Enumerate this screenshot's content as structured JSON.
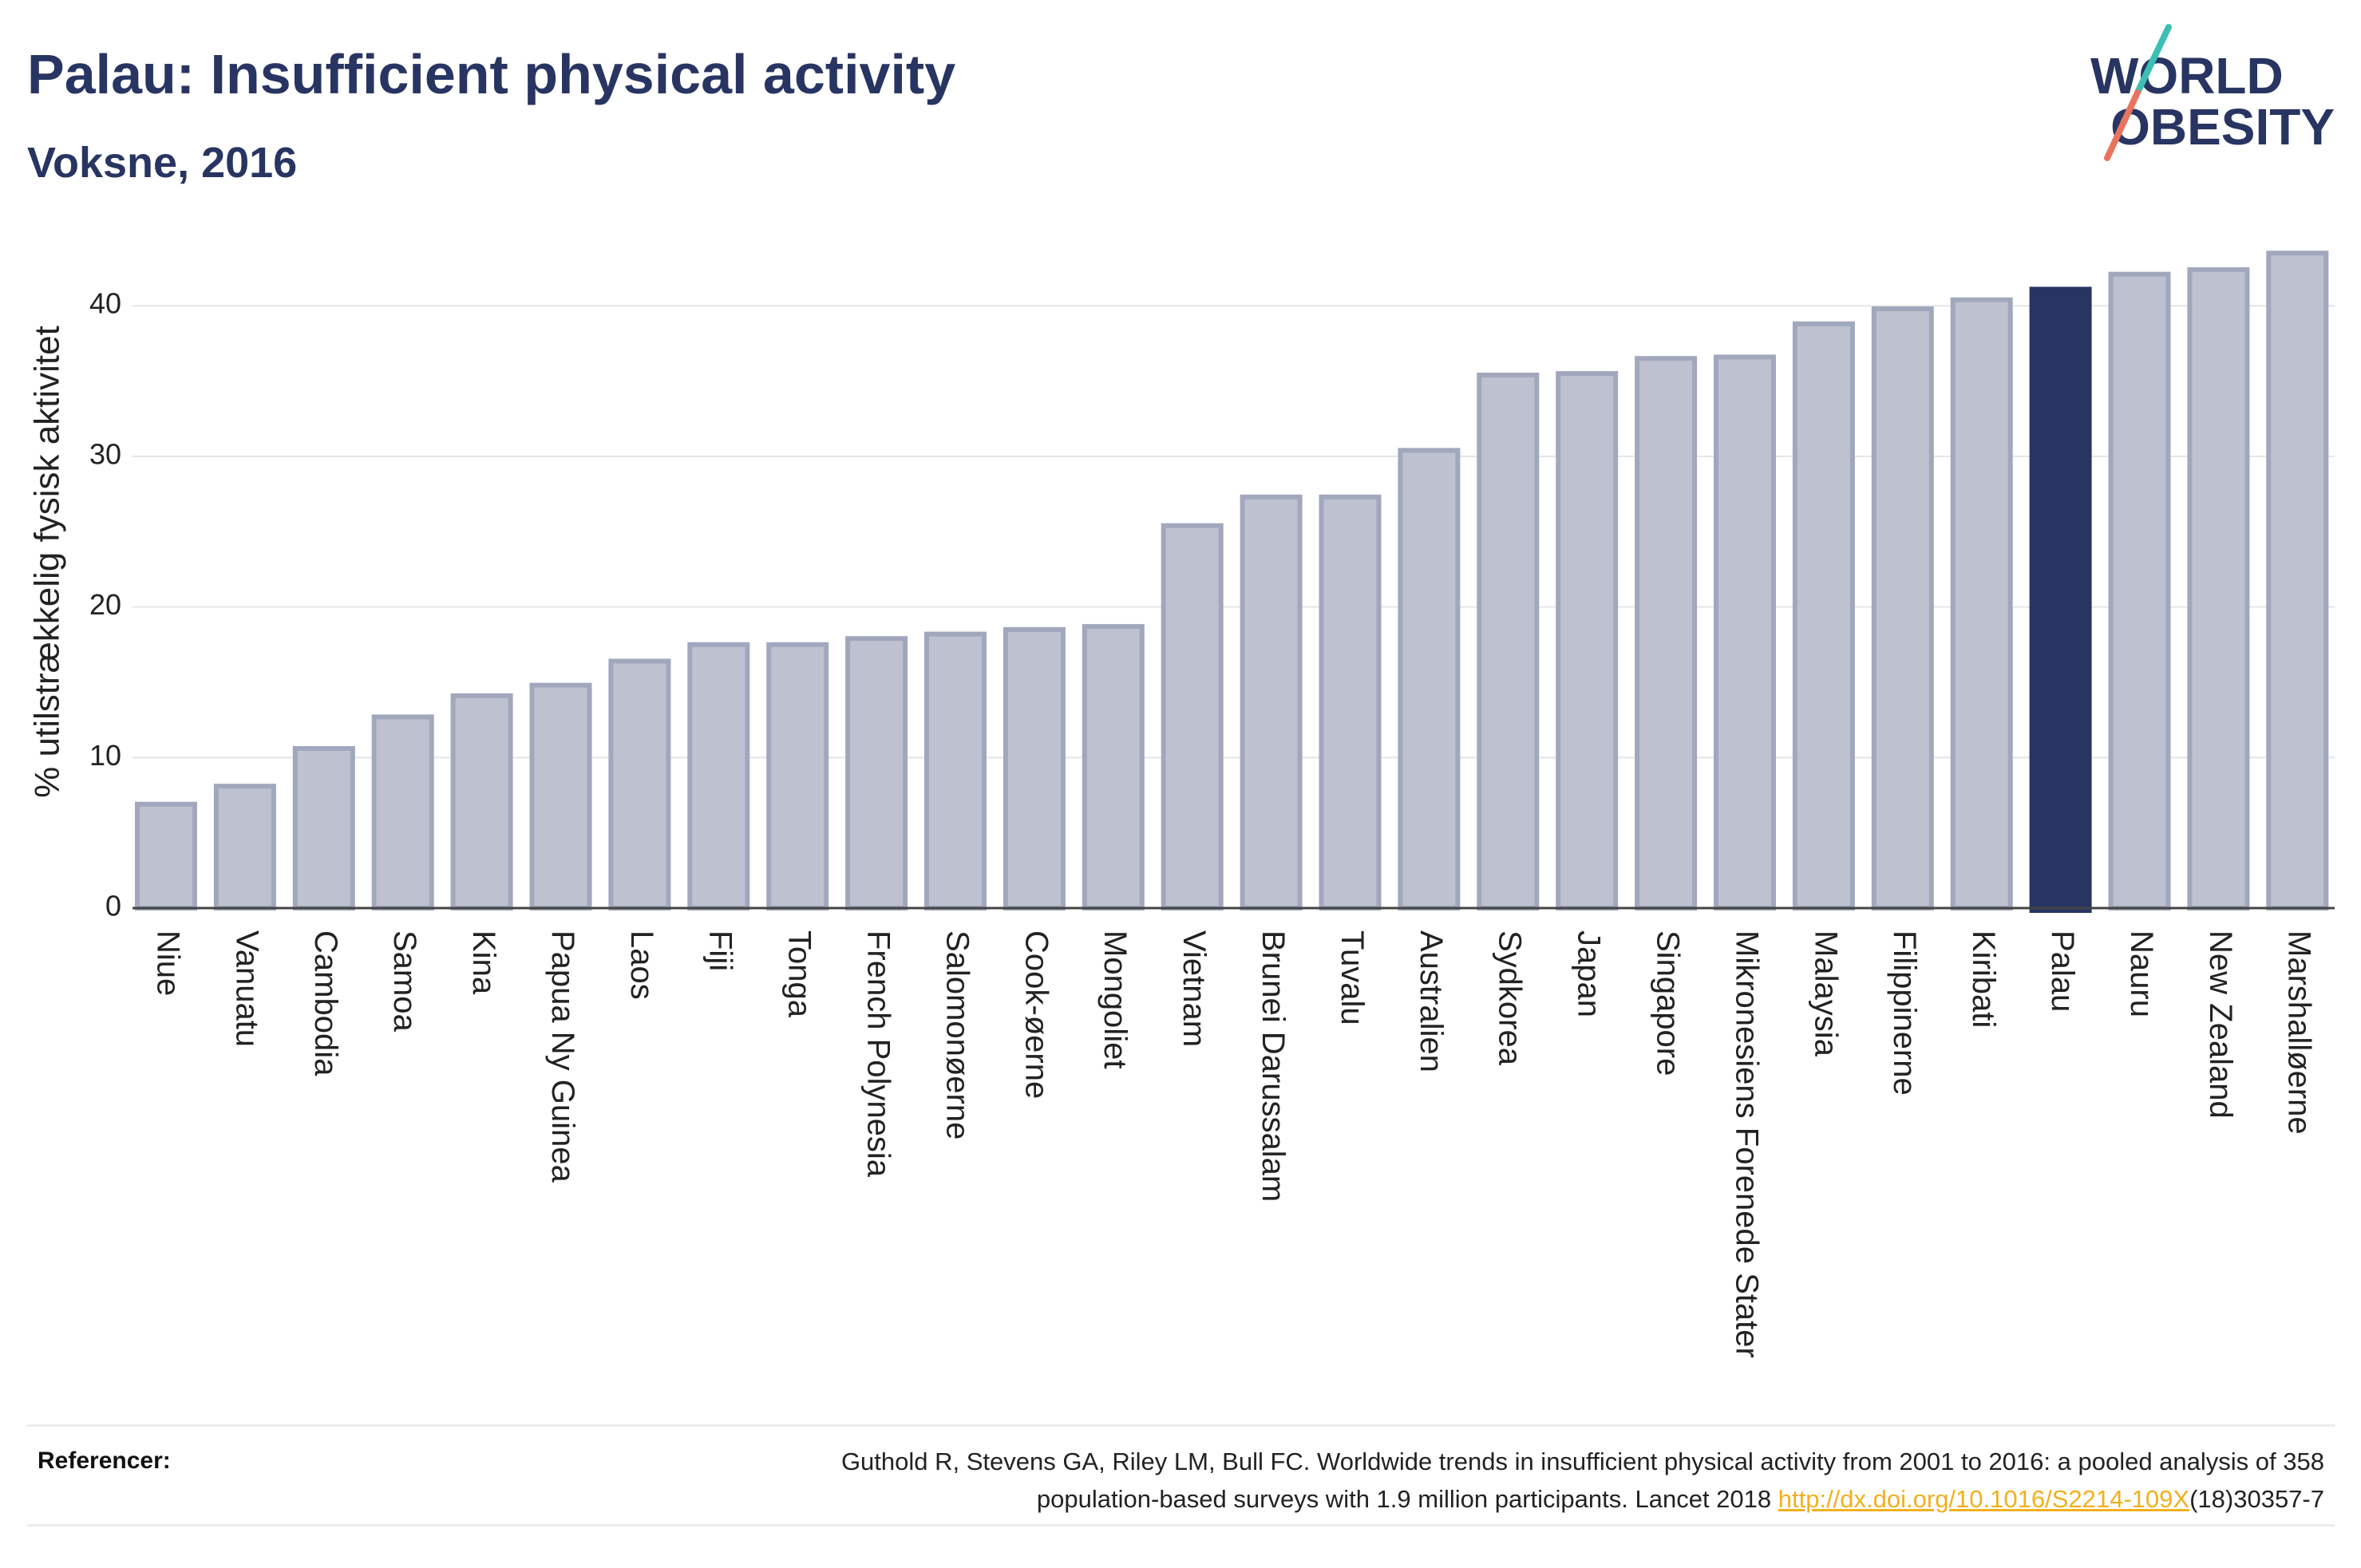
{
  "logo": {
    "line1": "WORLD",
    "line2": "OBESITY"
  },
  "chart_data": {
    "type": "bar",
    "title": "Palau: Insufficient physical activity",
    "subtitle": "Voksne, 2016",
    "xlabel": "",
    "ylabel": "% utilstrækkelig fysisk aktivitet",
    "categories": [
      "Niue",
      "Vanuatu",
      "Cambodia",
      "Samoa",
      "Kina",
      "Papua Ny Guinea",
      "Laos",
      "Fiji",
      "Tonga",
      "French Polynesia",
      "Salomonøerne",
      "Cook-øerne",
      "Mongoliet",
      "Vietnam",
      "Brunei Darussalam",
      "Tuvalu",
      "Australien",
      "Sydkorea",
      "Japan",
      "Singapore",
      "Mikronesiens Forenede Stater",
      "Malaysia",
      "Filippinerne",
      "Kiribati",
      "Palau",
      "Nauru",
      "New Zealand",
      "Marshalløerne"
    ],
    "values": [
      6.9,
      8.1,
      10.6,
      12.7,
      14.1,
      14.8,
      16.4,
      17.5,
      17.5,
      17.9,
      18.2,
      18.5,
      18.7,
      25.4,
      27.3,
      27.3,
      30.4,
      35.4,
      35.5,
      36.5,
      36.6,
      38.8,
      39.8,
      40.4,
      41.1,
      42.1,
      42.4,
      43.5
    ],
    "highlight": "Palau",
    "ylim": [
      0,
      45
    ],
    "yticks": [
      0,
      10,
      20,
      30,
      40
    ],
    "grid": true
  },
  "references": {
    "label": "Referencer:",
    "line1": "Guthold R, Stevens GA, Riley LM, Bull FC. Worldwide trends in insufficient physical activity from 2001 to 2016: a pooled analysis of 358",
    "line2_text": "population-based surveys with 1.9 million participants. Lancet 2018 ",
    "link": "http://dx.doi.org/10.1016/S2214-109X",
    "line2_suffix": "(18)30357-7"
  },
  "colors": {
    "title": "#283562",
    "bar": "#bec2d0",
    "bar_outline": "#a1a7bd",
    "highlight": "#283562",
    "gridline": "#e6e6e6",
    "axis": "#444444",
    "link": "#f2b01e",
    "logo_teal": "#3cbfb4",
    "logo_coral": "#e8745f"
  }
}
